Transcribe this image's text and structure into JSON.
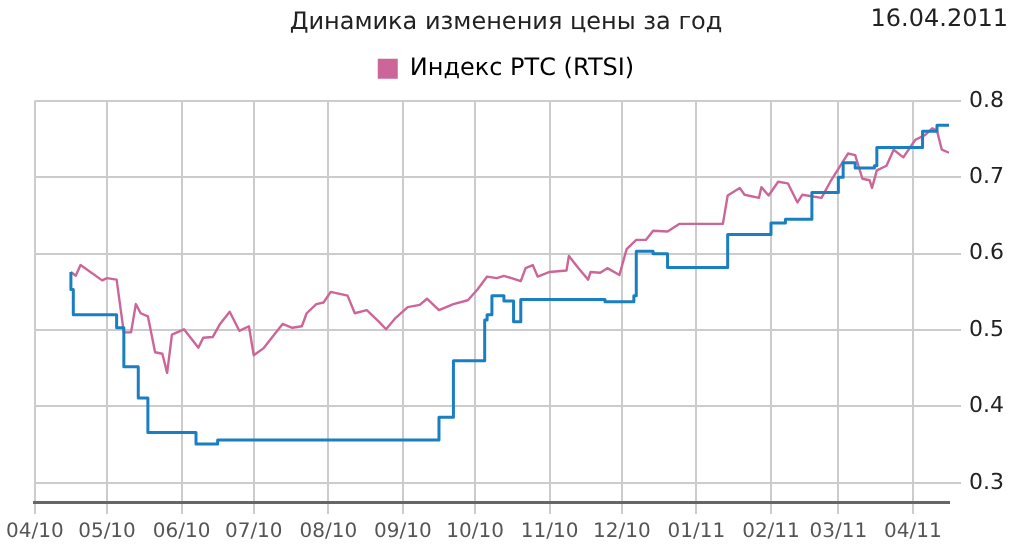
{
  "chart_data": {
    "type": "line",
    "title": "Динамика изменения цены за год",
    "annotations": [
      "16.04.2011"
    ],
    "xlim": [
      "2010-04-01",
      "2011-04-16"
    ],
    "xticks": [
      {
        "value": "2010-04-01",
        "label": "04/10"
      },
      {
        "value": "2010-05-01",
        "label": "05/10"
      },
      {
        "value": "2010-06-01",
        "label": "06/10"
      },
      {
        "value": "2010-07-01",
        "label": "07/10"
      },
      {
        "value": "2010-08-01",
        "label": "08/10"
      },
      {
        "value": "2010-09-01",
        "label": "09/10"
      },
      {
        "value": "2010-10-01",
        "label": "10/10"
      },
      {
        "value": "2010-11-01",
        "label": "11/10"
      },
      {
        "value": "2010-12-01",
        "label": "12/10"
      },
      {
        "value": "2011-01-01",
        "label": "01/11"
      },
      {
        "value": "2011-02-01",
        "label": "02/11"
      },
      {
        "value": "2011-03-01",
        "label": "03/11"
      },
      {
        "value": "2011-04-01",
        "label": "04/11"
      }
    ],
    "ylim": [
      0.275,
      0.8
    ],
    "yticks": [
      0.3,
      0.4,
      0.5,
      0.6,
      0.7,
      0.8
    ],
    "grid": true,
    "legend": "top",
    "marker": "none",
    "line_style": "solid",
    "series": [
      {
        "type": "step",
        "color": "#1a7fc1",
        "x": [
          "2010-04-16",
          "2010-04-17",
          "2010-05-05",
          "2010-05-08",
          "2010-05-14",
          "2010-05-18",
          "2010-06-07",
          "2010-06-16",
          "2010-09-16",
          "2010-09-22",
          "2010-10-05",
          "2010-10-06",
          "2010-10-08",
          "2010-10-13",
          "2010-10-17",
          "2010-10-20",
          "2010-11-24",
          "2010-12-06",
          "2010-12-07",
          "2010-12-14",
          "2010-12-20",
          "2011-01-14",
          "2011-02-01",
          "2011-02-07",
          "2011-02-18",
          "2011-03-01",
          "2011-03-03",
          "2011-03-08",
          "2011-03-16",
          "2011-03-17",
          "2011-04-05",
          "2011-04-11",
          "2011-04-14",
          "2011-04-16"
        ],
        "values": [
          0.576,
          0.553,
          0.52,
          0.503,
          0.452,
          0.411,
          0.366,
          0.351,
          0.356,
          0.386,
          0.46,
          0.513,
          0.52,
          0.545,
          0.538,
          0.511,
          0.54,
          0.537,
          0.545,
          0.603,
          0.6,
          0.582,
          0.625,
          0.64,
          0.645,
          0.68,
          0.7,
          0.719,
          0.712,
          0.715,
          0.739,
          0.76,
          0.768,
          0.768
        ]
      },
      {
        "name": "Индекс РТС (RTSI)",
        "color": "#cc6699",
        "x": [
          "2010-04-16",
          "2010-04-18",
          "2010-04-20",
          "2010-04-29",
          "2010-05-01",
          "2010-05-05",
          "2010-05-08",
          "2010-05-11",
          "2010-05-13",
          "2010-05-15",
          "2010-05-18",
          "2010-05-21",
          "2010-05-24",
          "2010-05-26",
          "2010-05-28",
          "2010-06-02",
          "2010-06-08",
          "2010-06-10",
          "2010-06-14",
          "2010-06-17",
          "2010-06-21",
          "2010-06-25",
          "2010-06-29",
          "2010-07-01",
          "2010-07-05",
          "2010-07-08",
          "2010-07-13",
          "2010-07-17",
          "2010-07-21",
          "2010-07-23",
          "2010-07-27",
          "2010-07-30",
          "2010-08-02",
          "2010-08-09",
          "2010-08-12",
          "2010-08-17",
          "2010-08-22",
          "2010-08-25",
          "2010-08-29",
          "2010-09-03",
          "2010-09-08",
          "2010-09-11",
          "2010-09-16",
          "2010-09-22",
          "2010-09-28",
          "2010-10-02",
          "2010-10-06",
          "2010-10-10",
          "2010-10-13",
          "2010-10-20",
          "2010-10-22",
          "2010-10-25",
          "2010-10-27",
          "2010-11-01",
          "2010-11-08",
          "2010-11-09",
          "2010-11-13",
          "2010-11-17",
          "2010-11-18",
          "2010-11-22",
          "2010-11-25",
          "2010-11-30",
          "2010-12-03",
          "2010-12-07",
          "2010-12-11",
          "2010-12-14",
          "2010-12-20",
          "2010-12-25",
          "2011-01-12",
          "2011-01-14",
          "2011-01-19",
          "2011-01-21",
          "2011-01-27",
          "2011-01-28",
          "2011-01-31",
          "2011-02-04",
          "2011-02-08",
          "2011-02-12",
          "2011-02-14",
          "2011-02-22",
          "2011-02-26",
          "2011-03-01",
          "2011-03-05",
          "2011-03-08",
          "2011-03-11",
          "2011-03-14",
          "2011-03-15",
          "2011-03-17",
          "2011-03-21",
          "2011-03-24",
          "2011-03-28",
          "2011-04-02",
          "2011-04-06",
          "2011-04-09",
          "2011-04-11",
          "2011-04-13",
          "2011-04-16"
        ],
        "values": [
          0.576,
          0.571,
          0.585,
          0.565,
          0.568,
          0.566,
          0.497,
          0.497,
          0.534,
          0.522,
          0.518,
          0.471,
          0.469,
          0.444,
          0.494,
          0.501,
          0.477,
          0.49,
          0.491,
          0.508,
          0.524,
          0.499,
          0.505,
          0.467,
          0.476,
          0.488,
          0.508,
          0.503,
          0.505,
          0.522,
          0.534,
          0.536,
          0.55,
          0.545,
          0.522,
          0.526,
          0.511,
          0.501,
          0.516,
          0.53,
          0.533,
          0.541,
          0.526,
          0.534,
          0.539,
          0.553,
          0.57,
          0.568,
          0.571,
          0.564,
          0.581,
          0.585,
          0.57,
          0.576,
          0.578,
          0.597,
          0.581,
          0.566,
          0.576,
          0.575,
          0.581,
          0.572,
          0.606,
          0.618,
          0.618,
          0.63,
          0.629,
          0.639,
          0.639,
          0.676,
          0.686,
          0.677,
          0.673,
          0.687,
          0.676,
          0.694,
          0.692,
          0.667,
          0.677,
          0.673,
          0.696,
          0.711,
          0.731,
          0.729,
          0.698,
          0.696,
          0.686,
          0.709,
          0.715,
          0.736,
          0.726,
          0.749,
          0.755,
          0.764,
          0.761,
          0.736,
          0.732
        ]
      }
    ]
  }
}
